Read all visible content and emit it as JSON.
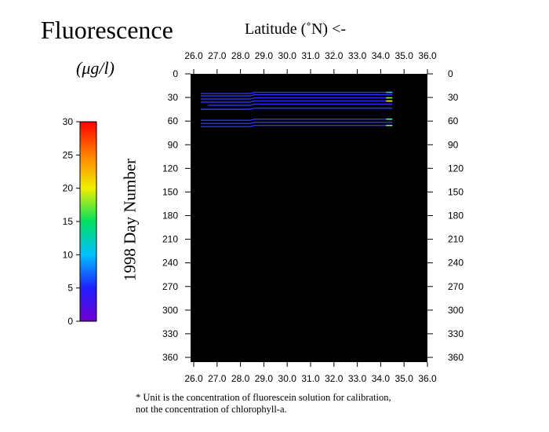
{
  "chart_data": {
    "type": "heatmap",
    "title": "Fluorescence",
    "xlabel": "Latitude (˚N) <-",
    "ylabel": "1998 Day Number",
    "colorbar": {
      "label": "(μg/l)",
      "ticks": [
        0,
        5,
        10,
        15,
        20,
        25,
        30
      ],
      "range": [
        0,
        30
      ],
      "colormap": [
        "#7000d0",
        "#2020ff",
        "#00c0ff",
        "#00e060",
        "#f0f000",
        "#ff8000",
        "#ff0000"
      ]
    },
    "xlim": [
      26.0,
      36.0
    ],
    "ylim": [
      0,
      365
    ],
    "x_ticks": [
      "26.0",
      "27.0",
      "28.0",
      "29.0",
      "30.0",
      "31.0",
      "32.0",
      "33.0",
      "34.0",
      "35.0",
      "36.0"
    ],
    "y_ticks": [
      "0",
      "30",
      "60",
      "90",
      "120",
      "150",
      "180",
      "210",
      "240",
      "270",
      "300",
      "330",
      "360"
    ],
    "background": "#000000",
    "tracks": [
      {
        "day": 25,
        "lat_start": 26.3,
        "lat_end": 34.5,
        "value": 3,
        "color": "#3030ff",
        "end_color": "#40c0ff"
      },
      {
        "day": 28,
        "lat_start": 26.3,
        "lat_end": 34.5,
        "value": 3,
        "color": "#3030ff"
      },
      {
        "day": 32,
        "lat_start": 26.3,
        "lat_end": 34.5,
        "value": 3,
        "color": "#3030ff",
        "end_color": "#80ff40"
      },
      {
        "day": 36,
        "lat_start": 26.3,
        "lat_end": 34.5,
        "value": 3,
        "color": "#3030ff",
        "end_color": "#ffff00"
      },
      {
        "day": 40,
        "lat_start": 26.6,
        "lat_end": 34.5,
        "value": 3,
        "color": "#3030ff"
      },
      {
        "day": 45,
        "lat_start": 26.3,
        "lat_end": 34.5,
        "value": 3,
        "color": "#3030ff"
      },
      {
        "day": 59,
        "lat_start": 26.3,
        "lat_end": 34.5,
        "value": 3,
        "color": "#3030ff",
        "end_color": "#40ffa0"
      },
      {
        "day": 63,
        "lat_start": 26.3,
        "lat_end": 34.5,
        "value": 3,
        "color": "#3030ff"
      },
      {
        "day": 67,
        "lat_start": 26.3,
        "lat_end": 34.5,
        "value": 3,
        "color": "#3030ff",
        "end_color": "#80ff60"
      }
    ]
  },
  "footnote": {
    "line1": "* Unit is the concentration of fluorescein solution for calibration,",
    "line2": "not the concentration of chlorophyll-a."
  }
}
